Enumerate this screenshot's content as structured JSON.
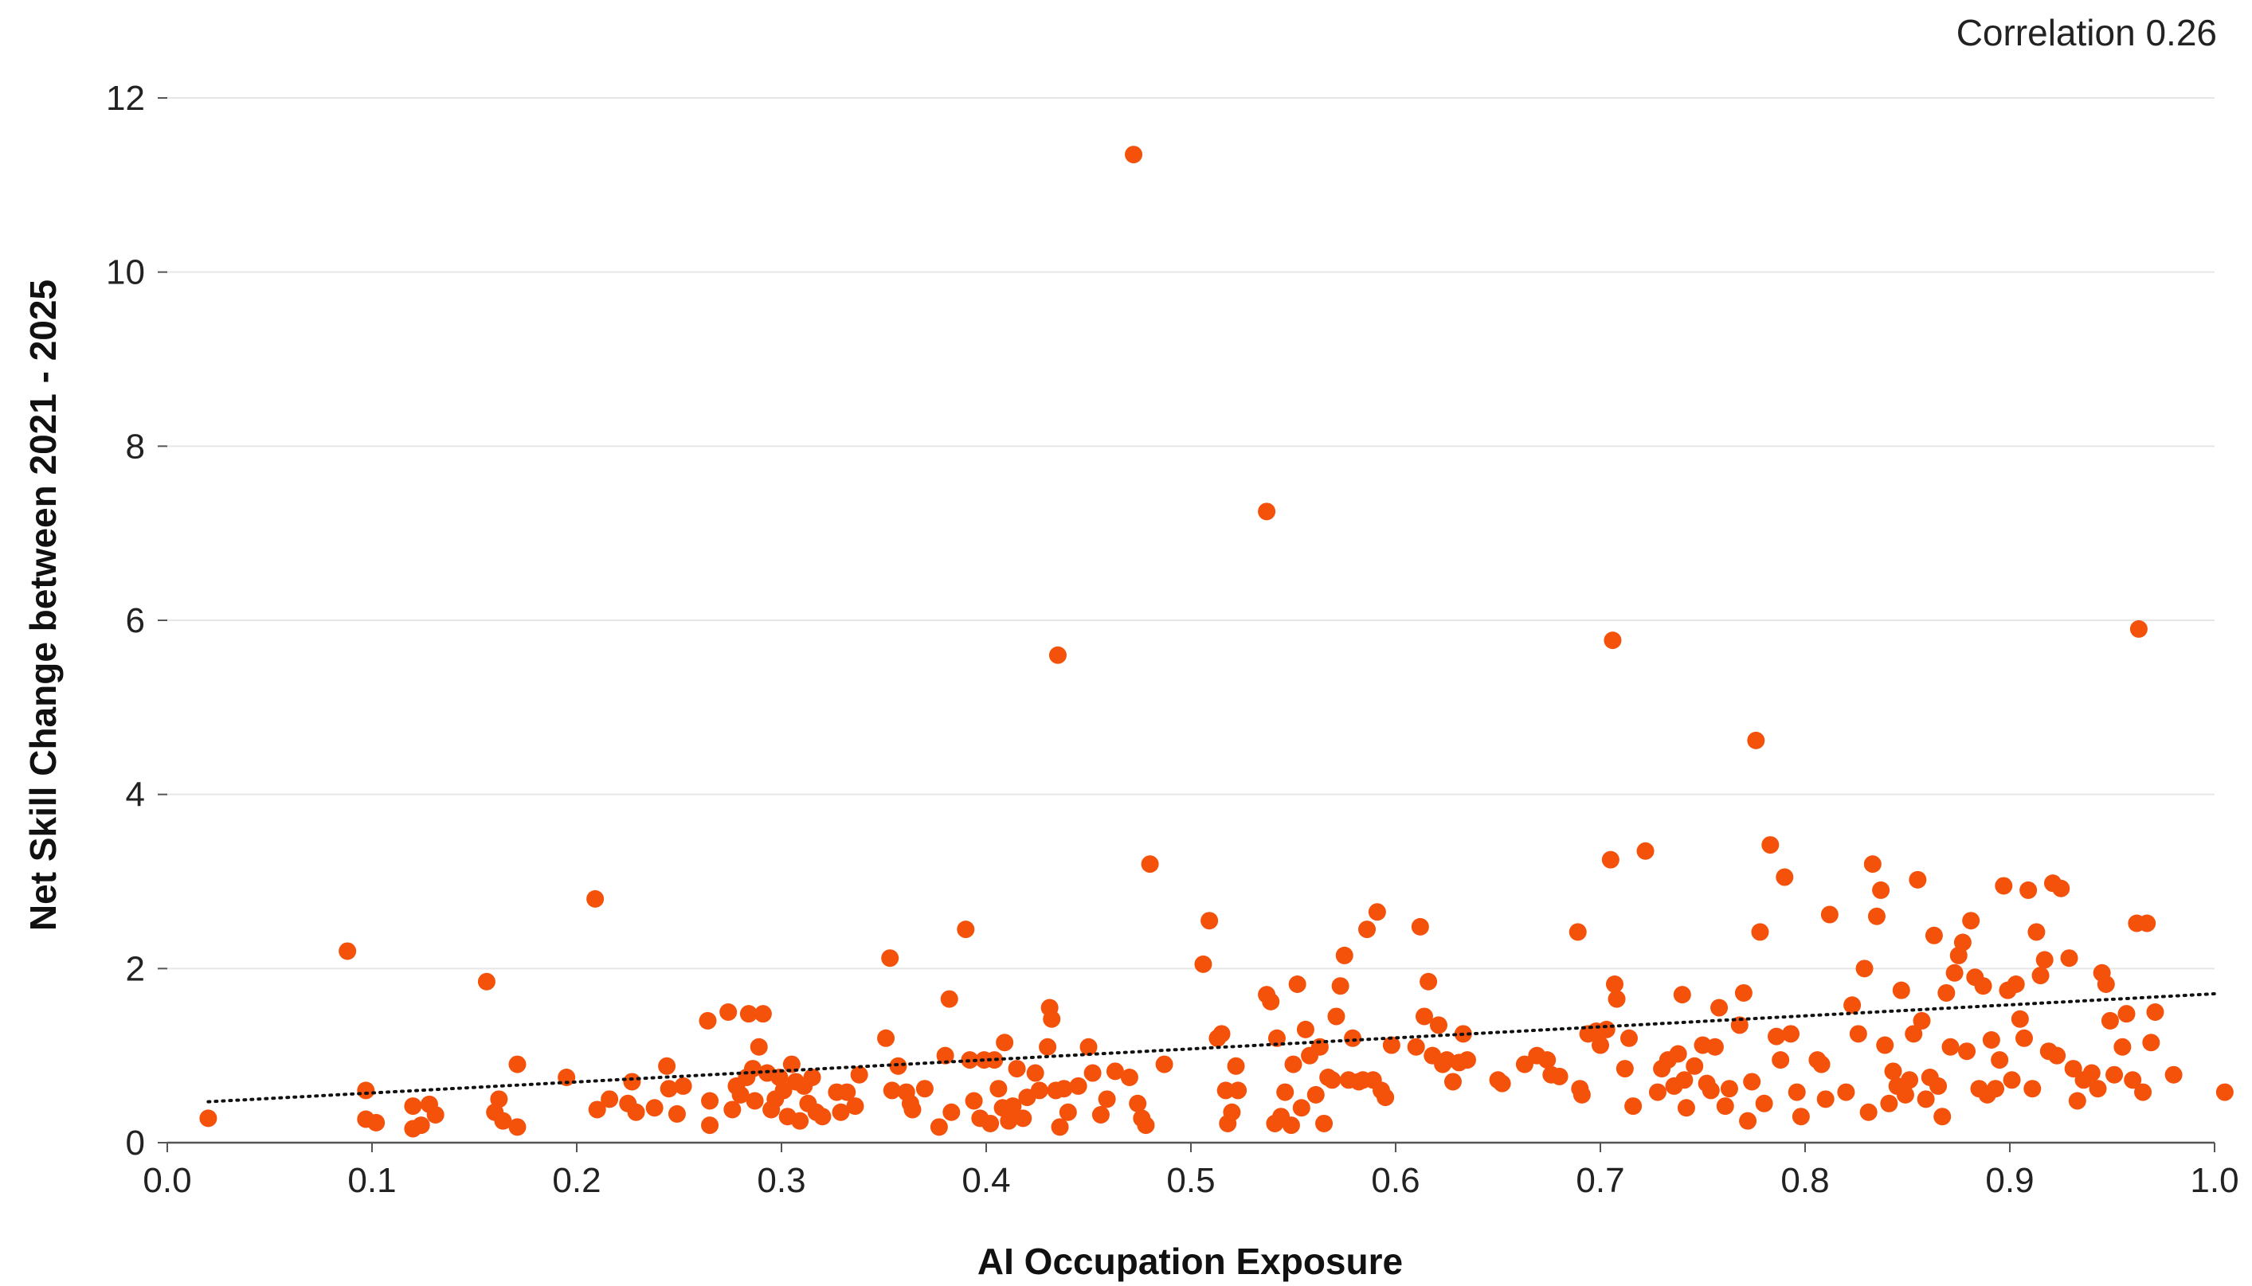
{
  "annotation": "Correlation 0.26",
  "colors": {
    "point": "#F4510B",
    "grid": "#e6e6e6",
    "axis": "#555555",
    "trend": "#111111"
  },
  "chart_data": {
    "type": "scatter",
    "xlabel": "AI Occupation Exposure",
    "ylabel": "Net Skill Change between 2021 - 2025",
    "xlim": [
      0,
      1
    ],
    "ylim": [
      0,
      12
    ],
    "xticks": [
      "0.0",
      "0.1",
      "0.2",
      "0.3",
      "0.4",
      "0.5",
      "0.6",
      "0.7",
      "0.8",
      "0.9",
      "1.0"
    ],
    "yticks": [
      "0",
      "2",
      "4",
      "6",
      "8",
      "10",
      "12"
    ],
    "grid": "horizontal",
    "trendline": {
      "style": "dotted",
      "x": [
        0.02,
        1.0
      ],
      "y": [
        0.47,
        1.71
      ]
    },
    "points": [
      [
        0.02,
        0.28
      ],
      [
        0.088,
        2.2
      ],
      [
        0.097,
        0.6
      ],
      [
        0.097,
        0.27
      ],
      [
        0.102,
        0.23
      ],
      [
        0.12,
        0.16
      ],
      [
        0.12,
        0.42
      ],
      [
        0.124,
        0.2
      ],
      [
        0.128,
        0.44
      ],
      [
        0.131,
        0.32
      ],
      [
        0.156,
        1.85
      ],
      [
        0.16,
        0.35
      ],
      [
        0.162,
        0.5
      ],
      [
        0.164,
        0.25
      ],
      [
        0.171,
        0.9
      ],
      [
        0.171,
        0.18
      ],
      [
        0.195,
        0.75
      ],
      [
        0.209,
        2.8
      ],
      [
        0.21,
        0.38
      ],
      [
        0.216,
        0.5
      ],
      [
        0.225,
        0.45
      ],
      [
        0.227,
        0.7
      ],
      [
        0.229,
        0.35
      ],
      [
        0.238,
        0.4
      ],
      [
        0.244,
        0.88
      ],
      [
        0.245,
        0.62
      ],
      [
        0.249,
        0.33
      ],
      [
        0.252,
        0.65
      ],
      [
        0.264,
        1.4
      ],
      [
        0.265,
        0.48
      ],
      [
        0.265,
        0.2
      ],
      [
        0.274,
        1.5
      ],
      [
        0.276,
        0.38
      ],
      [
        0.278,
        0.65
      ],
      [
        0.28,
        0.55
      ],
      [
        0.283,
        0.75
      ],
      [
        0.284,
        1.48
      ],
      [
        0.286,
        0.85
      ],
      [
        0.287,
        0.48
      ],
      [
        0.289,
        1.1
      ],
      [
        0.291,
        1.48
      ],
      [
        0.293,
        0.8
      ],
      [
        0.295,
        0.38
      ],
      [
        0.297,
        0.5
      ],
      [
        0.299,
        0.75
      ],
      [
        0.301,
        0.6
      ],
      [
        0.303,
        0.3
      ],
      [
        0.305,
        0.9
      ],
      [
        0.307,
        0.7
      ],
      [
        0.309,
        0.25
      ],
      [
        0.311,
        0.65
      ],
      [
        0.313,
        0.45
      ],
      [
        0.315,
        0.75
      ],
      [
        0.317,
        0.35
      ],
      [
        0.32,
        0.3
      ],
      [
        0.327,
        0.58
      ],
      [
        0.329,
        0.35
      ],
      [
        0.332,
        0.58
      ],
      [
        0.336,
        0.42
      ],
      [
        0.338,
        0.78
      ],
      [
        0.351,
        1.2
      ],
      [
        0.353,
        2.12
      ],
      [
        0.354,
        0.6
      ],
      [
        0.357,
        0.88
      ],
      [
        0.361,
        0.58
      ],
      [
        0.363,
        0.45
      ],
      [
        0.364,
        0.38
      ],
      [
        0.37,
        0.62
      ],
      [
        0.377,
        0.18
      ],
      [
        0.38,
        1.0
      ],
      [
        0.382,
        1.65
      ],
      [
        0.383,
        0.35
      ],
      [
        0.39,
        2.45
      ],
      [
        0.392,
        0.95
      ],
      [
        0.394,
        0.48
      ],
      [
        0.397,
        0.28
      ],
      [
        0.399,
        0.95
      ],
      [
        0.402,
        0.22
      ],
      [
        0.404,
        0.95
      ],
      [
        0.406,
        0.62
      ],
      [
        0.408,
        0.4
      ],
      [
        0.409,
        1.15
      ],
      [
        0.411,
        0.25
      ],
      [
        0.413,
        0.42
      ],
      [
        0.415,
        0.85
      ],
      [
        0.418,
        0.28
      ],
      [
        0.42,
        0.52
      ],
      [
        0.424,
        0.8
      ],
      [
        0.426,
        0.6
      ],
      [
        0.43,
        1.1
      ],
      [
        0.431,
        1.55
      ],
      [
        0.432,
        1.42
      ],
      [
        0.434,
        0.6
      ],
      [
        0.435,
        5.6
      ],
      [
        0.436,
        0.18
      ],
      [
        0.438,
        0.62
      ],
      [
        0.44,
        0.35
      ],
      [
        0.445,
        0.65
      ],
      [
        0.45,
        1.1
      ],
      [
        0.452,
        0.8
      ],
      [
        0.456,
        0.32
      ],
      [
        0.459,
        0.5
      ],
      [
        0.463,
        0.82
      ],
      [
        0.47,
        0.75
      ],
      [
        0.472,
        11.35
      ],
      [
        0.474,
        0.45
      ],
      [
        0.476,
        0.28
      ],
      [
        0.478,
        0.2
      ],
      [
        0.48,
        3.2
      ],
      [
        0.487,
        0.9
      ],
      [
        0.506,
        2.05
      ],
      [
        0.509,
        2.55
      ],
      [
        0.513,
        1.2
      ],
      [
        0.515,
        1.25
      ],
      [
        0.517,
        0.6
      ],
      [
        0.518,
        0.22
      ],
      [
        0.52,
        0.35
      ],
      [
        0.522,
        0.88
      ],
      [
        0.523,
        0.6
      ],
      [
        0.537,
        7.25
      ],
      [
        0.537,
        1.7
      ],
      [
        0.539,
        1.62
      ],
      [
        0.541,
        0.22
      ],
      [
        0.542,
        1.2
      ],
      [
        0.544,
        0.3
      ],
      [
        0.546,
        0.58
      ],
      [
        0.549,
        0.2
      ],
      [
        0.55,
        0.9
      ],
      [
        0.552,
        1.82
      ],
      [
        0.554,
        0.4
      ],
      [
        0.556,
        1.3
      ],
      [
        0.558,
        1.0
      ],
      [
        0.561,
        0.55
      ],
      [
        0.563,
        1.1
      ],
      [
        0.565,
        0.22
      ],
      [
        0.567,
        0.75
      ],
      [
        0.569,
        0.72
      ],
      [
        0.571,
        1.45
      ],
      [
        0.573,
        1.8
      ],
      [
        0.575,
        2.15
      ],
      [
        0.577,
        0.72
      ],
      [
        0.579,
        1.2
      ],
      [
        0.582,
        0.7
      ],
      [
        0.584,
        0.72
      ],
      [
        0.586,
        2.45
      ],
      [
        0.589,
        0.72
      ],
      [
        0.591,
        2.65
      ],
      [
        0.593,
        0.6
      ],
      [
        0.595,
        0.52
      ],
      [
        0.598,
        1.12
      ],
      [
        0.61,
        1.1
      ],
      [
        0.612,
        2.48
      ],
      [
        0.614,
        1.45
      ],
      [
        0.616,
        1.85
      ],
      [
        0.618,
        1.0
      ],
      [
        0.621,
        1.35
      ],
      [
        0.623,
        0.9
      ],
      [
        0.625,
        0.95
      ],
      [
        0.628,
        0.7
      ],
      [
        0.631,
        0.92
      ],
      [
        0.633,
        1.25
      ],
      [
        0.635,
        0.95
      ],
      [
        0.65,
        0.72
      ],
      [
        0.652,
        0.68
      ],
      [
        0.663,
        0.9
      ],
      [
        0.669,
        1.0
      ],
      [
        0.674,
        0.95
      ],
      [
        0.676,
        0.78
      ],
      [
        0.68,
        0.76
      ],
      [
        0.689,
        2.42
      ],
      [
        0.69,
        0.62
      ],
      [
        0.691,
        0.55
      ],
      [
        0.694,
        1.25
      ],
      [
        0.698,
        1.28
      ],
      [
        0.7,
        1.12
      ],
      [
        0.703,
        1.3
      ],
      [
        0.705,
        3.25
      ],
      [
        0.706,
        5.77
      ],
      [
        0.707,
        1.82
      ],
      [
        0.708,
        1.65
      ],
      [
        0.712,
        0.85
      ],
      [
        0.714,
        1.2
      ],
      [
        0.716,
        0.42
      ],
      [
        0.722,
        3.35
      ],
      [
        0.728,
        0.58
      ],
      [
        0.73,
        0.85
      ],
      [
        0.733,
        0.95
      ],
      [
        0.736,
        0.65
      ],
      [
        0.738,
        1.02
      ],
      [
        0.74,
        1.7
      ],
      [
        0.741,
        0.72
      ],
      [
        0.742,
        0.4
      ],
      [
        0.746,
        0.88
      ],
      [
        0.75,
        1.12
      ],
      [
        0.752,
        0.68
      ],
      [
        0.754,
        0.6
      ],
      [
        0.756,
        1.1
      ],
      [
        0.758,
        1.55
      ],
      [
        0.761,
        0.42
      ],
      [
        0.763,
        0.62
      ],
      [
        0.768,
        1.35
      ],
      [
        0.77,
        1.72
      ],
      [
        0.772,
        0.25
      ],
      [
        0.774,
        0.7
      ],
      [
        0.776,
        4.62
      ],
      [
        0.778,
        2.42
      ],
      [
        0.78,
        0.45
      ],
      [
        0.783,
        3.42
      ],
      [
        0.786,
        1.22
      ],
      [
        0.788,
        0.95
      ],
      [
        0.79,
        3.05
      ],
      [
        0.793,
        1.25
      ],
      [
        0.796,
        0.58
      ],
      [
        0.798,
        0.3
      ],
      [
        0.806,
        0.95
      ],
      [
        0.808,
        0.9
      ],
      [
        0.81,
        0.5
      ],
      [
        0.812,
        2.62
      ],
      [
        0.82,
        0.58
      ],
      [
        0.823,
        1.58
      ],
      [
        0.826,
        1.25
      ],
      [
        0.829,
        2.0
      ],
      [
        0.831,
        0.35
      ],
      [
        0.833,
        3.2
      ],
      [
        0.835,
        2.6
      ],
      [
        0.837,
        2.9
      ],
      [
        0.839,
        1.12
      ],
      [
        0.841,
        0.45
      ],
      [
        0.843,
        0.82
      ],
      [
        0.845,
        0.65
      ],
      [
        0.847,
        1.75
      ],
      [
        0.849,
        0.55
      ],
      [
        0.851,
        0.72
      ],
      [
        0.853,
        1.25
      ],
      [
        0.855,
        3.02
      ],
      [
        0.857,
        1.4
      ],
      [
        0.859,
        0.5
      ],
      [
        0.861,
        0.75
      ],
      [
        0.863,
        2.38
      ],
      [
        0.865,
        0.65
      ],
      [
        0.867,
        0.3
      ],
      [
        0.869,
        1.72
      ],
      [
        0.871,
        1.1
      ],
      [
        0.873,
        1.95
      ],
      [
        0.875,
        2.15
      ],
      [
        0.877,
        2.3
      ],
      [
        0.879,
        1.05
      ],
      [
        0.881,
        2.55
      ],
      [
        0.883,
        1.9
      ],
      [
        0.885,
        0.62
      ],
      [
        0.887,
        1.8
      ],
      [
        0.889,
        0.55
      ],
      [
        0.891,
        1.18
      ],
      [
        0.893,
        0.62
      ],
      [
        0.895,
        0.95
      ],
      [
        0.897,
        2.95
      ],
      [
        0.899,
        1.75
      ],
      [
        0.901,
        0.72
      ],
      [
        0.903,
        1.82
      ],
      [
        0.905,
        1.42
      ],
      [
        0.907,
        1.2
      ],
      [
        0.909,
        2.9
      ],
      [
        0.911,
        0.62
      ],
      [
        0.913,
        2.42
      ],
      [
        0.915,
        1.92
      ],
      [
        0.917,
        2.1
      ],
      [
        0.919,
        1.05
      ],
      [
        0.921,
        2.98
      ],
      [
        0.923,
        1.0
      ],
      [
        0.925,
        2.92
      ],
      [
        0.929,
        2.12
      ],
      [
        0.931,
        0.85
      ],
      [
        0.933,
        0.48
      ],
      [
        0.936,
        0.72
      ],
      [
        0.94,
        0.8
      ],
      [
        0.943,
        0.62
      ],
      [
        0.945,
        1.95
      ],
      [
        0.947,
        1.82
      ],
      [
        0.949,
        1.4
      ],
      [
        0.951,
        0.78
      ],
      [
        0.955,
        1.1
      ],
      [
        0.957,
        1.48
      ],
      [
        0.96,
        0.72
      ],
      [
        0.962,
        2.52
      ],
      [
        0.963,
        5.9
      ],
      [
        0.965,
        0.58
      ],
      [
        0.967,
        2.52
      ],
      [
        0.969,
        1.15
      ],
      [
        0.971,
        1.5
      ],
      [
        0.98,
        0.78
      ],
      [
        1.005,
        0.58
      ]
    ]
  }
}
